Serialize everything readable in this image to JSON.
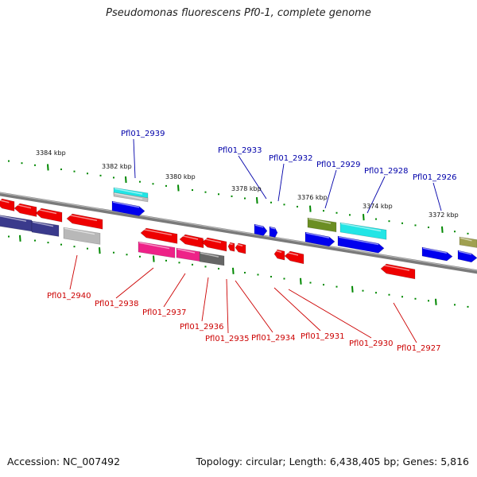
{
  "title": "Pseudomonas fluorescens Pf0-1, complete genome",
  "footer": {
    "accession": "Accession: NC_007492",
    "summary": "Topology: circular; Length: 6,438,405 bp; Genes: 5,816"
  },
  "colors": {
    "forward_label": "#0000aa",
    "reverse_label": "#cc0000",
    "ticks": "#008800",
    "backbone": "#7a7a7a"
  },
  "ticks": [
    "3384 kbp",
    "3382 kbp",
    "3380 kbp",
    "3378 kbp",
    "3376 kbp",
    "3374 kbp",
    "3372 kbp"
  ],
  "forward_genes": [
    "Pfl01_2939",
    "Pfl01_2933",
    "Pfl01_2932",
    "Pfl01_2929",
    "Pfl01_2928",
    "Pfl01_2926"
  ],
  "reverse_genes": [
    "Pfl01_2940",
    "Pfl01_2938",
    "Pfl01_2937",
    "Pfl01_2936",
    "Pfl01_2935",
    "Pfl01_2934",
    "Pfl01_2931",
    "Pfl01_2930",
    "Pfl01_2927"
  ]
}
